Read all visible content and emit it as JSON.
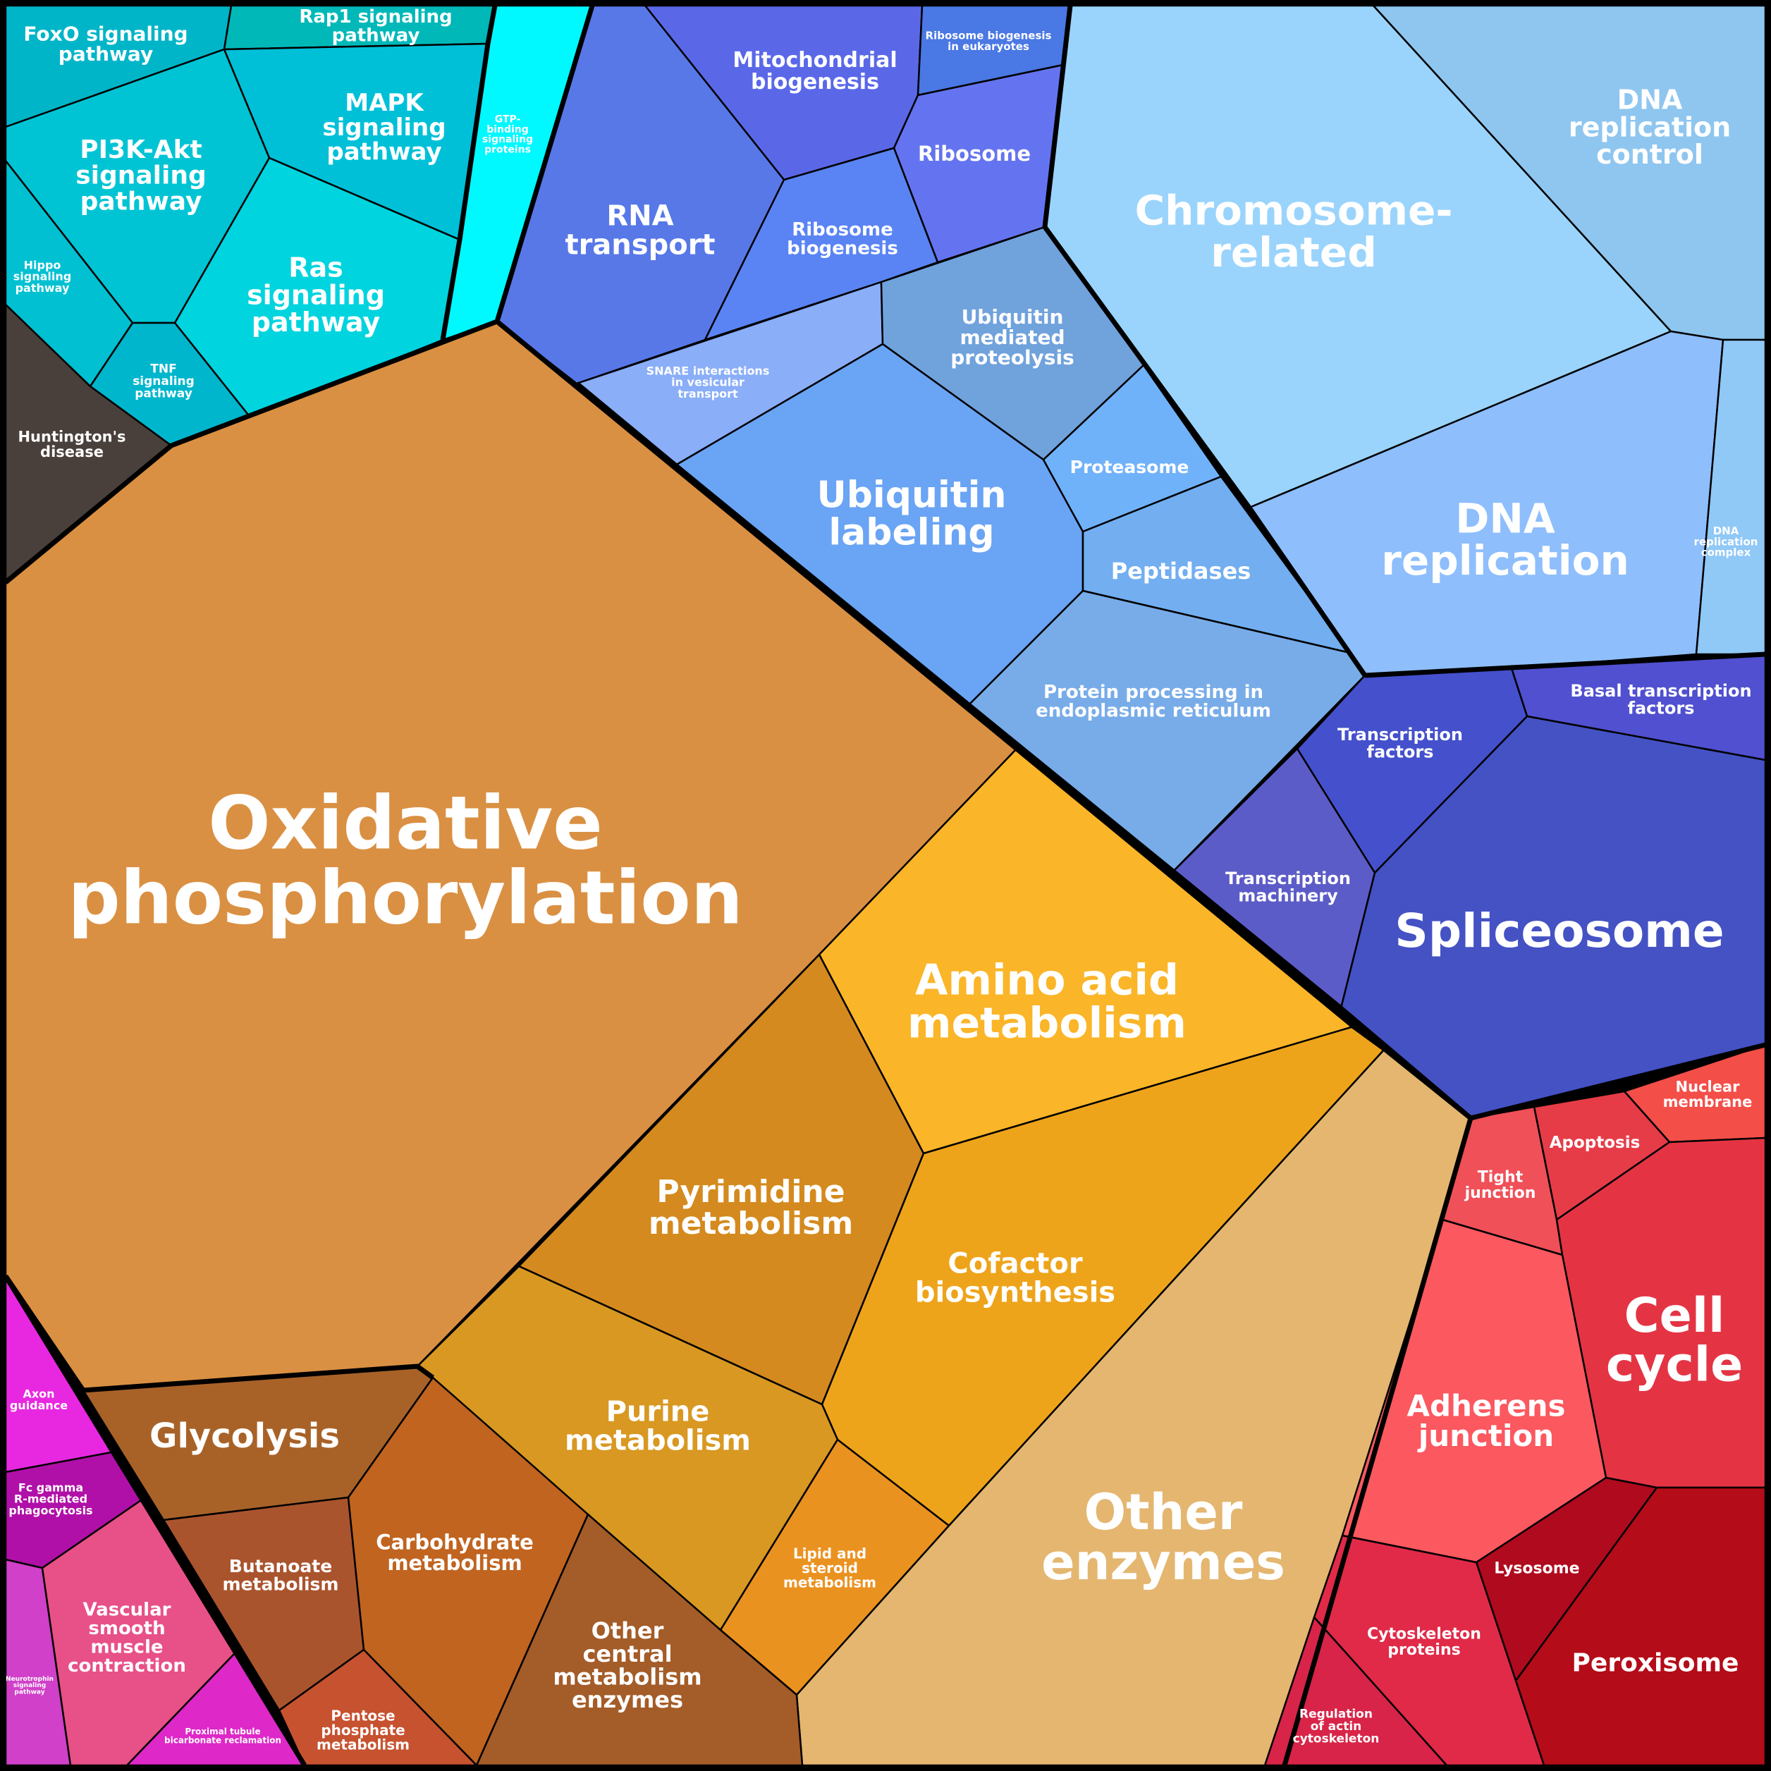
{
  "groups": [
    {
      "name": "signaling",
      "color": "#00c8d8"
    },
    {
      "name": "metabolism",
      "color": "#e0992c"
    },
    {
      "name": "genetic-information",
      "color": "#5a78f0"
    },
    {
      "name": "cellular-processes",
      "color": "#e03040"
    },
    {
      "name": "organismal-systems",
      "color": "#e040c8"
    },
    {
      "name": "disease",
      "color": "#4a403a"
    }
  ],
  "cells": [
    {
      "id": "foxo",
      "group": "signaling",
      "color": "#00b5c8",
      "text": [
        "FoxO signaling",
        "pathway"
      ]
    },
    {
      "id": "rap1",
      "group": "signaling",
      "color": "#00b8b8",
      "text": [
        "Rap1 signaling",
        "pathway"
      ]
    },
    {
      "id": "pi3k",
      "group": "signaling",
      "color": "#00c4d4",
      "text": [
        "PI3K-Akt",
        "signaling",
        "pathway"
      ]
    },
    {
      "id": "mapk",
      "group": "signaling",
      "color": "#00c0d8",
      "text": [
        "MAPK",
        "signaling",
        "pathway"
      ]
    },
    {
      "id": "hippo",
      "group": "signaling",
      "color": "#00c0d2",
      "text": [
        "Hippo",
        "signaling",
        "pathway"
      ]
    },
    {
      "id": "ras",
      "group": "signaling",
      "color": "#00d4de",
      "text": [
        "Ras",
        "signaling",
        "pathway"
      ]
    },
    {
      "id": "tnf",
      "group": "signaling",
      "color": "#00b6cc",
      "text": [
        "TNF",
        "signaling",
        "pathway"
      ]
    },
    {
      "id": "gtp",
      "group": "signaling",
      "color": "#00f8ff",
      "text": [
        "GTP-",
        "binding",
        "signaling",
        "proteins"
      ]
    },
    {
      "id": "huntington",
      "group": "disease",
      "color": "#4a403b",
      "text": [
        "Huntington's",
        "disease"
      ]
    },
    {
      "id": "mito",
      "group": "genetic-information",
      "color": "#5a68e8",
      "text": [
        "Mitochondrial",
        "biogenesis"
      ]
    },
    {
      "id": "ribo_euk",
      "group": "genetic-information",
      "color": "#4a78e4",
      "text": [
        "Ribosome biogenesis",
        "in eukaryotes"
      ]
    },
    {
      "id": "ribosome",
      "group": "genetic-information",
      "color": "#6474f0",
      "text": [
        "Ribosome"
      ]
    },
    {
      "id": "rna",
      "group": "genetic-information",
      "color": "#5878e8",
      "text": [
        "RNA",
        "transport"
      ]
    },
    {
      "id": "ribo_bio",
      "group": "genetic-information",
      "color": "#5a84f4",
      "text": [
        "Ribosome",
        "biogenesis"
      ]
    },
    {
      "id": "snare",
      "group": "genetic-information",
      "color": "#8aaef8",
      "text": [
        "SNARE interactions",
        "in vesicular",
        "transport"
      ]
    },
    {
      "id": "ubq_prot",
      "group": "genetic-information",
      "color": "#70a2dc",
      "text": [
        "Ubiquitin",
        "mediated",
        "proteolysis"
      ]
    },
    {
      "id": "ubq_label",
      "group": "genetic-information",
      "color": "#6aa4f4",
      "text": [
        "Ubiquitin",
        "labeling"
      ]
    },
    {
      "id": "proteasome",
      "group": "genetic-information",
      "color": "#70b2fa",
      "text": [
        "Proteasome"
      ]
    },
    {
      "id": "peptidases",
      "group": "genetic-information",
      "color": "#72aef0",
      "text": [
        "Peptidases"
      ]
    },
    {
      "id": "er",
      "group": "genetic-information",
      "color": "#78ace8",
      "text": [
        "Protein processing in",
        "endoplasmic reticulum"
      ]
    },
    {
      "id": "chromosome",
      "group": "genetic-information",
      "color": "#9ad4fc",
      "text": [
        "Chromosome-",
        "related"
      ]
    },
    {
      "id": "dna_ctrl",
      "group": "genetic-information",
      "color": "#8ec6f0",
      "text": [
        "DNA",
        "replication",
        "control"
      ]
    },
    {
      "id": "dna_rep",
      "group": "genetic-information",
      "color": "#8ebefc",
      "text": [
        "DNA",
        "replication"
      ]
    },
    {
      "id": "dna_cplx",
      "group": "genetic-information",
      "color": "#90c8f6",
      "text": [
        "DNA",
        "replication",
        "complex"
      ]
    },
    {
      "id": "basal",
      "group": "genetic-information",
      "color": "#5050d0",
      "text": [
        "Basal transcription",
        "factors"
      ]
    },
    {
      "id": "tf",
      "group": "genetic-information",
      "color": "#4450cc",
      "text": [
        "Transcription",
        "factors"
      ]
    },
    {
      "id": "tmach",
      "group": "genetic-information",
      "color": "#5c5cc8",
      "text": [
        "Transcription",
        "machinery"
      ]
    },
    {
      "id": "spliceosome",
      "group": "genetic-information",
      "color": "#4452c4",
      "text": [
        "Spliceosome"
      ]
    },
    {
      "id": "oxphos",
      "group": "metabolism",
      "color": "#da9042",
      "text": [
        "Oxidative",
        "phosphorylation"
      ]
    },
    {
      "id": "amino",
      "group": "metabolism",
      "color": "#fbb528",
      "text": [
        "Amino acid",
        "metabolism"
      ]
    },
    {
      "id": "pyrimidine",
      "group": "metabolism",
      "color": "#d48a1e",
      "text": [
        "Pyrimidine",
        "metabolism"
      ]
    },
    {
      "id": "cofactor",
      "group": "metabolism",
      "color": "#eea41a",
      "text": [
        "Cofactor",
        "biosynthesis"
      ]
    },
    {
      "id": "purine",
      "group": "metabolism",
      "color": "#d89822",
      "text": [
        "Purine",
        "metabolism"
      ]
    },
    {
      "id": "lipid",
      "group": "metabolism",
      "color": "#ea9220",
      "text": [
        "Lipid and",
        "steroid",
        "metabolism"
      ]
    },
    {
      "id": "other_enz",
      "group": "metabolism",
      "color": "#e4b670",
      "text": [
        "Other",
        "enzymes"
      ]
    },
    {
      "id": "glycolysis",
      "group": "metabolism",
      "color": "#a86228",
      "text": [
        "Glycolysis"
      ]
    },
    {
      "id": "butanoate",
      "group": "metabolism",
      "color": "#aa542e",
      "text": [
        "Butanoate",
        "metabolism"
      ]
    },
    {
      "id": "carb",
      "group": "metabolism",
      "color": "#c06420",
      "text": [
        "Carbohydrate",
        "metabolism"
      ]
    },
    {
      "id": "pentose",
      "group": "metabolism",
      "color": "#c65230",
      "text": [
        "Pentose",
        "phosphate",
        "metabolism"
      ]
    },
    {
      "id": "other_central",
      "group": "metabolism",
      "color": "#a45c28",
      "text": [
        "Other",
        "central",
        "metabolism",
        "enzymes"
      ]
    },
    {
      "id": "axon",
      "group": "organismal-systems",
      "color": "#e828e0",
      "text": [
        "Axon",
        "guidance"
      ]
    },
    {
      "id": "fcgamma",
      "group": "organismal-systems",
      "color": "#b010a8",
      "text": [
        "Fc gamma",
        "R-mediated",
        "phagocytosis"
      ]
    },
    {
      "id": "neurotrophin",
      "group": "organismal-systems",
      "color": "#d040c8",
      "text": [
        "Neurotrophin",
        "signaling",
        "pathway"
      ]
    },
    {
      "id": "vascular",
      "group": "organismal-systems",
      "color": "#e85088",
      "text": [
        "Vascular",
        "smooth",
        "muscle",
        "contraction"
      ]
    },
    {
      "id": "proximal",
      "group": "organismal-systems",
      "color": "#de28c8",
      "text": [
        "Proximal tubule",
        "bicarbonate reclamation"
      ]
    },
    {
      "id": "nuclear",
      "group": "cellular-processes",
      "color": "#f44e48",
      "text": [
        "Nuclear",
        "membrane"
      ]
    },
    {
      "id": "apoptosis",
      "group": "cellular-processes",
      "color": "#e63c48",
      "text": [
        "Apoptosis"
      ]
    },
    {
      "id": "tight",
      "group": "cellular-processes",
      "color": "#f05058",
      "text": [
        "Tight",
        "junction"
      ]
    },
    {
      "id": "cellcycle",
      "group": "cellular-processes",
      "color": "#e43444",
      "text": [
        "Cell",
        "cycle"
      ]
    },
    {
      "id": "adherens",
      "group": "cellular-processes",
      "color": "#fc5860",
      "text": [
        "Adherens",
        "junction"
      ]
    },
    {
      "id": "lysosome",
      "group": "cellular-processes",
      "color": "#b00a1e",
      "text": [
        "Lysosome"
      ]
    },
    {
      "id": "peroxisome",
      "group": "cellular-processes",
      "color": "#b40c18",
      "text": [
        "Peroxisome"
      ]
    },
    {
      "id": "cytoskel",
      "group": "cellular-processes",
      "color": "#e02a48",
      "text": [
        "Cytoskeleton",
        "proteins"
      ]
    },
    {
      "id": "actin",
      "group": "cellular-processes",
      "color": "#d82448",
      "text": [
        "Regulation",
        "of actin",
        "cytoskeleton"
      ]
    }
  ]
}
